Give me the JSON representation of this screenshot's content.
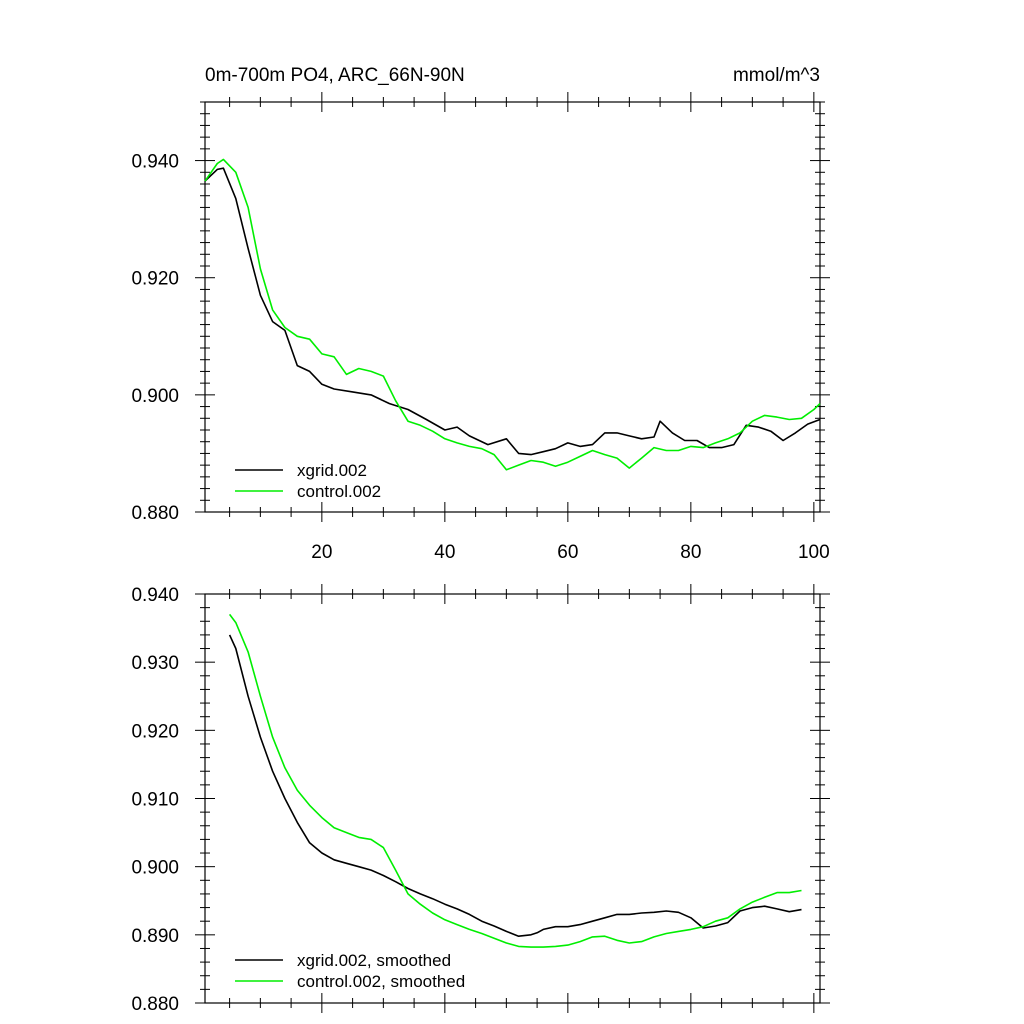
{
  "chart_data": [
    {
      "type": "line",
      "title": "0m-700m PO4, ARC_66N-90N",
      "units": "mmol/m^3",
      "xlim": [
        1,
        101
      ],
      "ylim": [
        0.88,
        0.95
      ],
      "xticks": [
        20,
        40,
        60,
        80,
        100
      ],
      "yticks": [
        0.88,
        0.9,
        0.92,
        0.94
      ],
      "ytick_labels": [
        "0.880",
        "0.900",
        "0.920",
        "0.940"
      ],
      "xtick_labels": [
        "20",
        "40",
        "60",
        "80",
        "100"
      ],
      "legend_position": "bottom-left",
      "series": [
        {
          "name": "xgrid.002",
          "color": "#000000",
          "x": [
            1,
            3,
            4,
            6,
            8,
            10,
            12,
            14,
            16,
            18,
            20,
            22,
            25,
            28,
            31,
            34,
            37,
            40,
            42,
            44,
            47,
            50,
            52,
            54,
            56,
            58,
            60,
            62,
            64,
            66,
            68,
            70,
            72,
            74,
            75,
            77,
            79,
            81,
            83,
            85,
            87,
            89,
            91,
            93,
            95,
            97,
            99,
            101
          ],
          "y": [
            0.9365,
            0.9385,
            0.9387,
            0.9335,
            0.925,
            0.917,
            0.9125,
            0.911,
            0.905,
            0.904,
            0.9018,
            0.901,
            0.9005,
            0.9,
            0.8985,
            0.8975,
            0.8958,
            0.894,
            0.8945,
            0.893,
            0.8915,
            0.8925,
            0.89,
            0.8898,
            0.8903,
            0.8908,
            0.8918,
            0.8912,
            0.8915,
            0.8935,
            0.8935,
            0.893,
            0.8925,
            0.8928,
            0.8955,
            0.8935,
            0.8922,
            0.8922,
            0.891,
            0.891,
            0.8915,
            0.8948,
            0.8945,
            0.8938,
            0.8922,
            0.8935,
            0.895,
            0.8958
          ]
        },
        {
          "name": "control.002",
          "color": "#00ee00",
          "x": [
            1,
            3,
            4,
            6,
            8,
            10,
            12,
            14,
            16,
            18,
            20,
            22,
            24,
            26,
            28,
            30,
            32,
            34,
            36,
            38,
            40,
            42,
            44,
            46,
            48,
            50,
            52,
            54,
            56,
            58,
            60,
            62,
            64,
            66,
            68,
            70,
            72,
            74,
            76,
            78,
            80,
            82,
            84,
            86,
            88,
            90,
            92,
            94,
            96,
            98,
            100,
            101
          ],
          "y": [
            0.9365,
            0.9395,
            0.9402,
            0.938,
            0.932,
            0.9215,
            0.9145,
            0.9115,
            0.91,
            0.9095,
            0.907,
            0.9065,
            0.9035,
            0.9045,
            0.904,
            0.9032,
            0.899,
            0.8955,
            0.8948,
            0.8938,
            0.8925,
            0.8918,
            0.8912,
            0.8908,
            0.8898,
            0.8872,
            0.888,
            0.8888,
            0.8885,
            0.8878,
            0.8885,
            0.8895,
            0.8905,
            0.8898,
            0.8892,
            0.8875,
            0.8892,
            0.891,
            0.8905,
            0.8905,
            0.8912,
            0.891,
            0.8918,
            0.8925,
            0.8935,
            0.8955,
            0.8965,
            0.8962,
            0.8958,
            0.896,
            0.8975,
            0.8985
          ]
        }
      ]
    },
    {
      "type": "line",
      "title": "",
      "xlim": [
        1,
        101
      ],
      "ylim": [
        0.88,
        0.94
      ],
      "xticks": [
        20,
        40,
        60,
        80,
        100
      ],
      "yticks": [
        0.88,
        0.89,
        0.9,
        0.91,
        0.92,
        0.93,
        0.94
      ],
      "ytick_labels": [
        "0.880",
        "0.890",
        "0.900",
        "0.910",
        "0.920",
        "0.930",
        "0.940"
      ],
      "legend_position": "bottom-left",
      "series": [
        {
          "name": "xgrid.002, smoothed",
          "color": "#000000",
          "x": [
            5,
            6,
            8,
            10,
            12,
            14,
            16,
            18,
            20,
            22,
            24,
            26,
            28,
            30,
            32,
            34,
            36,
            38,
            40,
            42,
            44,
            46,
            48,
            50,
            52,
            54,
            55,
            56,
            58,
            60,
            62,
            64,
            66,
            68,
            70,
            72,
            74,
            76,
            78,
            80,
            82,
            84,
            86,
            88,
            90,
            92,
            94,
            96,
            98
          ],
          "y": [
            0.934,
            0.932,
            0.925,
            0.919,
            0.914,
            0.91,
            0.9065,
            0.9035,
            0.902,
            0.901,
            0.9005,
            0.9,
            0.8995,
            0.8987,
            0.8978,
            0.8968,
            0.896,
            0.8953,
            0.8945,
            0.8938,
            0.893,
            0.892,
            0.8913,
            0.8905,
            0.8898,
            0.89,
            0.8903,
            0.8908,
            0.8912,
            0.8912,
            0.8915,
            0.892,
            0.8925,
            0.893,
            0.893,
            0.8932,
            0.8933,
            0.8935,
            0.8933,
            0.8925,
            0.891,
            0.8913,
            0.8918,
            0.8935,
            0.894,
            0.8942,
            0.8938,
            0.8934,
            0.8937
          ]
        },
        {
          "name": "control.002, smoothed",
          "color": "#00ee00",
          "x": [
            5,
            6,
            8,
            10,
            12,
            14,
            16,
            18,
            20,
            22,
            24,
            26,
            28,
            30,
            32,
            34,
            36,
            38,
            40,
            42,
            44,
            46,
            48,
            50,
            52,
            54,
            56,
            58,
            60,
            62,
            64,
            66,
            68,
            70,
            72,
            74,
            76,
            78,
            80,
            82,
            84,
            86,
            88,
            90,
            92,
            94,
            96,
            98
          ],
          "y": [
            0.937,
            0.9358,
            0.9315,
            0.925,
            0.919,
            0.9145,
            0.9112,
            0.909,
            0.9072,
            0.9057,
            0.905,
            0.9043,
            0.904,
            0.9028,
            0.8995,
            0.896,
            0.8945,
            0.8932,
            0.8922,
            0.8915,
            0.8908,
            0.8902,
            0.8895,
            0.8888,
            0.8883,
            0.8882,
            0.8882,
            0.8883,
            0.8885,
            0.889,
            0.8897,
            0.8898,
            0.8892,
            0.8888,
            0.889,
            0.8897,
            0.8902,
            0.8905,
            0.8908,
            0.8912,
            0.892,
            0.8925,
            0.8938,
            0.8948,
            0.8955,
            0.8962,
            0.8962,
            0.8965
          ]
        }
      ]
    }
  ]
}
